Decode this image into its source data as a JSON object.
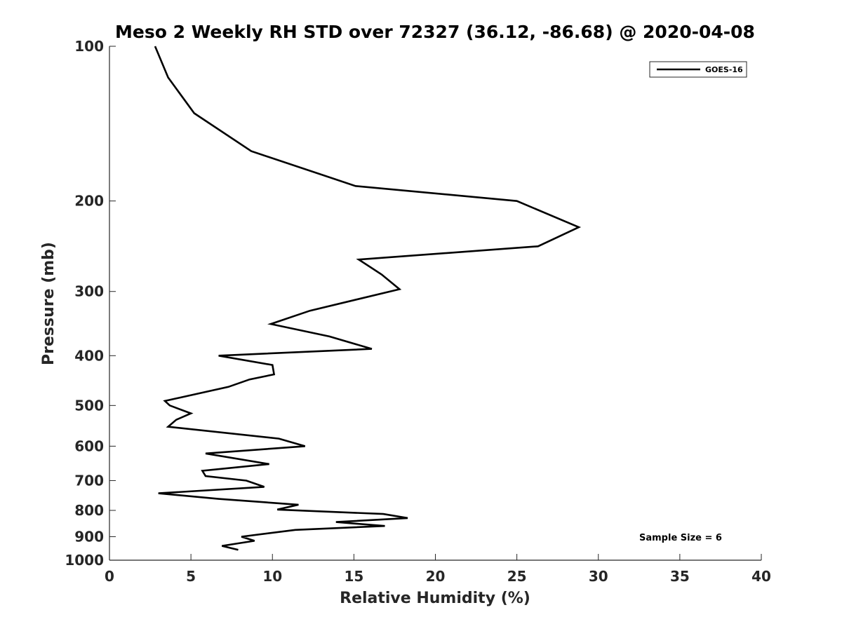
{
  "chart_data": {
    "type": "line",
    "title": "Meso 2 Weekly RH STD over 72327 (36.12, -86.68) @ 2020-04-08",
    "xlabel": "Relative Humidity (%)",
    "ylabel": "Pressure (mb)",
    "xlim": [
      0,
      40
    ],
    "ylim": [
      100,
      1000
    ],
    "yscale": "log",
    "y_reversed": true,
    "grid": false,
    "xticks": [
      0,
      5,
      10,
      15,
      20,
      25,
      30,
      35,
      40
    ],
    "yticks": [
      100,
      200,
      300,
      400,
      500,
      600,
      700,
      800,
      900,
      1000
    ],
    "legend": {
      "location": "top-right",
      "entries": [
        "GOES-16"
      ]
    },
    "annotation": "Sample Size = 6",
    "series": [
      {
        "name": "GOES-16",
        "color": "#000000",
        "x": [
          2.8,
          3.6,
          5.2,
          8.7,
          15.1,
          25.0,
          28.8,
          26.3,
          15.3,
          16.7,
          17.8,
          12.3,
          9.9,
          13.5,
          16.1,
          6.7,
          10.0,
          10.1,
          8.6,
          7.3,
          3.4,
          3.7,
          5.0,
          4.1,
          3.6,
          10.4,
          12.0,
          5.9,
          9.8,
          5.7,
          5.9,
          8.4,
          9.5,
          3.0,
          6.7,
          11.6,
          10.3,
          16.8,
          18.3,
          13.9,
          16.9,
          11.4,
          8.1,
          8.9,
          6.9,
          7.9
        ],
        "pressure": [
          100,
          115,
          135,
          160,
          187,
          200,
          225,
          245,
          260,
          278,
          297,
          327,
          347,
          367,
          388,
          400,
          417,
          435,
          445,
          460,
          490,
          500,
          518,
          533,
          550,
          580,
          600,
          620,
          650,
          670,
          686,
          700,
          720,
          741,
          760,
          780,
          797,
          813,
          828,
          843,
          858,
          873,
          900,
          917,
          938,
          955
        ]
      }
    ]
  }
}
